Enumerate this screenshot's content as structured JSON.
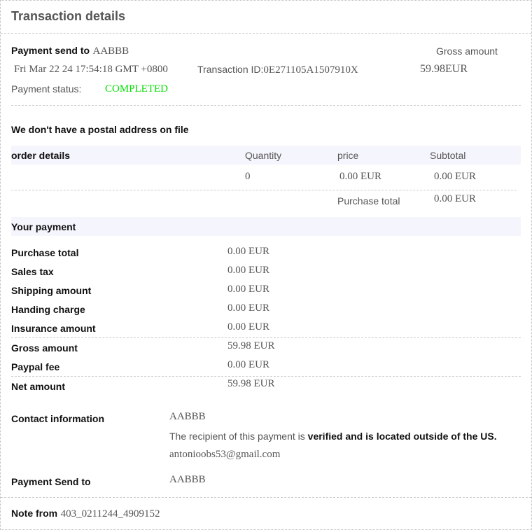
{
  "title": "Transaction details",
  "summary": {
    "send_to_label": "Payment send to",
    "send_to_value": "AABBB",
    "gross_label": "Gross amount",
    "gross_value": "59.98EUR",
    "date": "Fri Mar 22 24 17:54:18 GMT +0800",
    "transaction_id_label": "Transaction ID:",
    "transaction_id": "0E271105A1507910X",
    "status_label": "Payment status:",
    "status_value": "COMPLETED",
    "status_color": "#00e000"
  },
  "postal_notice": "We don't have a postal address on file",
  "order": {
    "headers": [
      "order details",
      "Quantity",
      "price",
      "Subtotal"
    ],
    "row": [
      "0",
      "0.00 EUR",
      "0.00 EUR"
    ],
    "total_label": "Purchase total",
    "total_value": "0.00 EUR"
  },
  "payment": {
    "heading": "Your payment",
    "rows": [
      {
        "label": "Purchase total",
        "value": "0.00 EUR"
      },
      {
        "label": "Sales tax",
        "value": "0.00 EUR"
      },
      {
        "label": "Shipping amount",
        "value": "0.00 EUR"
      },
      {
        "label": "Handing charge",
        "value": "0.00 EUR"
      },
      {
        "label": "Insurance amount",
        "value": "0.00 EUR"
      },
      {
        "label": "Gross amount",
        "value": "59.98 EUR"
      },
      {
        "label": "Paypal fee",
        "value": "0.00 EUR"
      },
      {
        "label": "Net amount",
        "value": "59.98 EUR"
      }
    ]
  },
  "contact": {
    "label": "Contact information",
    "name": "AABBB",
    "notice_prefix": "The recipient of this payment is ",
    "notice_bold": "verified and is located outside of the US.",
    "email": "antonioobs53@gmail.com",
    "send_to_label": "Payment Send to",
    "send_to_value": "AABBB"
  },
  "note": {
    "label": "Note from",
    "value": "403_0211244_4909152"
  }
}
